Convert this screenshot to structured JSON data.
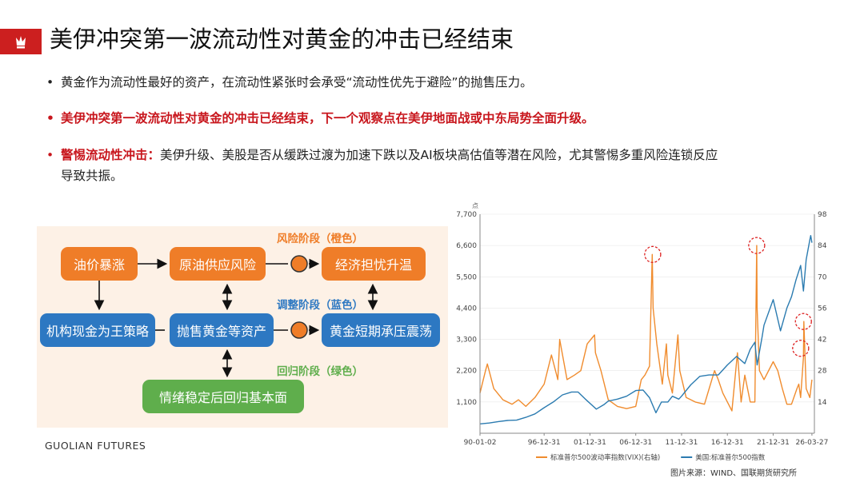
{
  "title": "美伊冲突第一波流动性对黄金的冲击已经结束",
  "bullets": [
    {
      "text": "黄金作为流动性最好的资产，在流动性紧张时会承受“流动性优先于避险”的抛售压力。"
    },
    {
      "text": "美伊冲突第一波流动性对黄金的冲击已经结束，下一个观察点在美伊地面战或中东局势全面升级。"
    },
    {
      "lead": "警惕流动性冲击：",
      "text": "美伊升级、美股是否从缓跌过渡为加速下跌以及AI板块高估值等潜在风险，尤其警惕多重风险连锁反应",
      "text2": "导致共振。"
    }
  ],
  "flow": {
    "nodes": {
      "oil_spike": "油价暴涨",
      "supply_risk": "原油供应风险",
      "growth_worry": "经济担忧升温",
      "cash_king": "机构现金为王策略",
      "sell_gold": "抛售黄金等资产",
      "gold_pressure": "黄金短期承压震荡",
      "return_fundamentals": "情绪稳定后回归基本面"
    },
    "stages": {
      "risk": "风险阶段（橙色）",
      "adjust": "调整阶段（蓝色）",
      "return": "回归阶段（绿色）"
    },
    "colors": {
      "orange": "#ef7d28",
      "blue": "#2d78c2",
      "green": "#5fae4c",
      "panel": "#fdf1e6"
    }
  },
  "brand": "GUOLIAN FUTURES",
  "source": "图片来源：WIND、国联期货研究所",
  "chart_data": {
    "type": "line",
    "left_unit": "点",
    "left_ticks": [
      "7,700",
      "6,600",
      "5,500",
      "4,400",
      "3,300",
      "2,200",
      "1,100"
    ],
    "right_ticks": [
      "98",
      "84",
      "70",
      "56",
      "42",
      "28",
      "14"
    ],
    "left_ylim": [
      0,
      7700
    ],
    "right_ylim": [
      0,
      98
    ],
    "x_ticks": [
      "90-01-02",
      "96-12-31",
      "01-12-31",
      "06-12-31",
      "11-12-31",
      "16-12-31",
      "21-12-31",
      "26-03-27"
    ],
    "x_tick_years": [
      1990.0,
      1997.0,
      2002.0,
      2007.0,
      2012.0,
      2017.0,
      2022.0,
      2026.23
    ],
    "xlim": [
      1990.0,
      2026.5
    ],
    "series": [
      {
        "name": "标准普尔500波动率指数(VIX)(右轴)",
        "axis": "right",
        "color": "#f08c2e",
        "x": [
          1990.0,
          1990.6,
          1990.8,
          1991.5,
          1992.5,
          1993.5,
          1994.2,
          1995.0,
          1996.0,
          1997.0,
          1997.8,
          1998.5,
          1998.7,
          1999.5,
          2000.3,
          2001.0,
          2001.7,
          2002.5,
          2002.6,
          2003.2,
          2004.0,
          2005.0,
          2006.0,
          2007.0,
          2007.6,
          2008.0,
          2008.5,
          2008.8,
          2008.9,
          2009.3,
          2009.9,
          2010.35,
          2010.5,
          2011.0,
          2011.6,
          2011.8,
          2012.5,
          2013.5,
          2014.5,
          2015.6,
          2016.0,
          2016.5,
          2017.5,
          2018.1,
          2018.5,
          2018.9,
          2019.5,
          2020.0,
          2020.2,
          2020.25,
          2020.5,
          2021.0,
          2022.0,
          2022.5,
          2023.0,
          2023.5,
          2024.0,
          2024.6,
          2024.8,
          2025.0,
          2025.3,
          2025.35,
          2025.6,
          2026.0,
          2026.23
        ],
        "y": [
          18,
          28,
          31,
          20,
          15,
          13,
          15,
          12,
          16,
          22,
          35,
          24,
          42,
          24,
          26,
          28,
          40,
          44,
          36,
          28,
          15,
          12,
          11,
          12,
          24,
          26,
          30,
          80,
          56,
          40,
          22,
          40,
          26,
          18,
          44,
          28,
          16,
          14,
          13,
          28,
          24,
          18,
          10,
          36,
          14,
          26,
          14,
          14,
          84,
          56,
          28,
          24,
          32,
          28,
          20,
          13,
          13,
          20,
          22,
          16,
          34,
          50,
          20,
          16,
          24
        ]
      },
      {
        "name": "美国:标准普尔500指数",
        "axis": "left",
        "color": "#2b7bb0",
        "x": [
          1990.0,
          1991.0,
          1992.0,
          1993.0,
          1994.0,
          1995.0,
          1996.0,
          1997.0,
          1998.0,
          1999.0,
          2000.0,
          2000.7,
          2001.5,
          2002.7,
          2003.5,
          2004.0,
          2005.0,
          2006.0,
          2007.0,
          2007.8,
          2008.5,
          2009.2,
          2009.8,
          2010.5,
          2011.0,
          2011.7,
          2012.0,
          2013.0,
          2014.0,
          2015.0,
          2016.0,
          2017.0,
          2018.0,
          2018.9,
          2019.5,
          2020.0,
          2020.25,
          2020.8,
          2021.0,
          2022.0,
          2022.8,
          2023.5,
          2024.0,
          2024.5,
          2025.0,
          2025.3,
          2025.6,
          2026.0,
          2026.1,
          2026.23
        ],
        "y": [
          330,
          360,
          410,
          450,
          460,
          560,
          680,
          900,
          1100,
          1350,
          1450,
          1450,
          1200,
          850,
          1000,
          1130,
          1200,
          1300,
          1500,
          1520,
          1250,
          720,
          1100,
          1100,
          1300,
          1200,
          1300,
          1700,
          2000,
          2050,
          2050,
          2400,
          2700,
          2450,
          2950,
          3200,
          2400,
          3400,
          3800,
          4700,
          3600,
          4400,
          4800,
          5400,
          5900,
          5000,
          6100,
          6800,
          6950,
          6700
        ]
      }
    ],
    "highlight_circles": [
      {
        "x": 2008.85,
        "y": 80,
        "axis": "right"
      },
      {
        "x": 2020.2,
        "y": 84,
        "axis": "right"
      },
      {
        "x": 2025.3,
        "y": 50,
        "axis": "right"
      },
      {
        "x": 2025.0,
        "y": 38,
        "axis": "right"
      }
    ]
  }
}
